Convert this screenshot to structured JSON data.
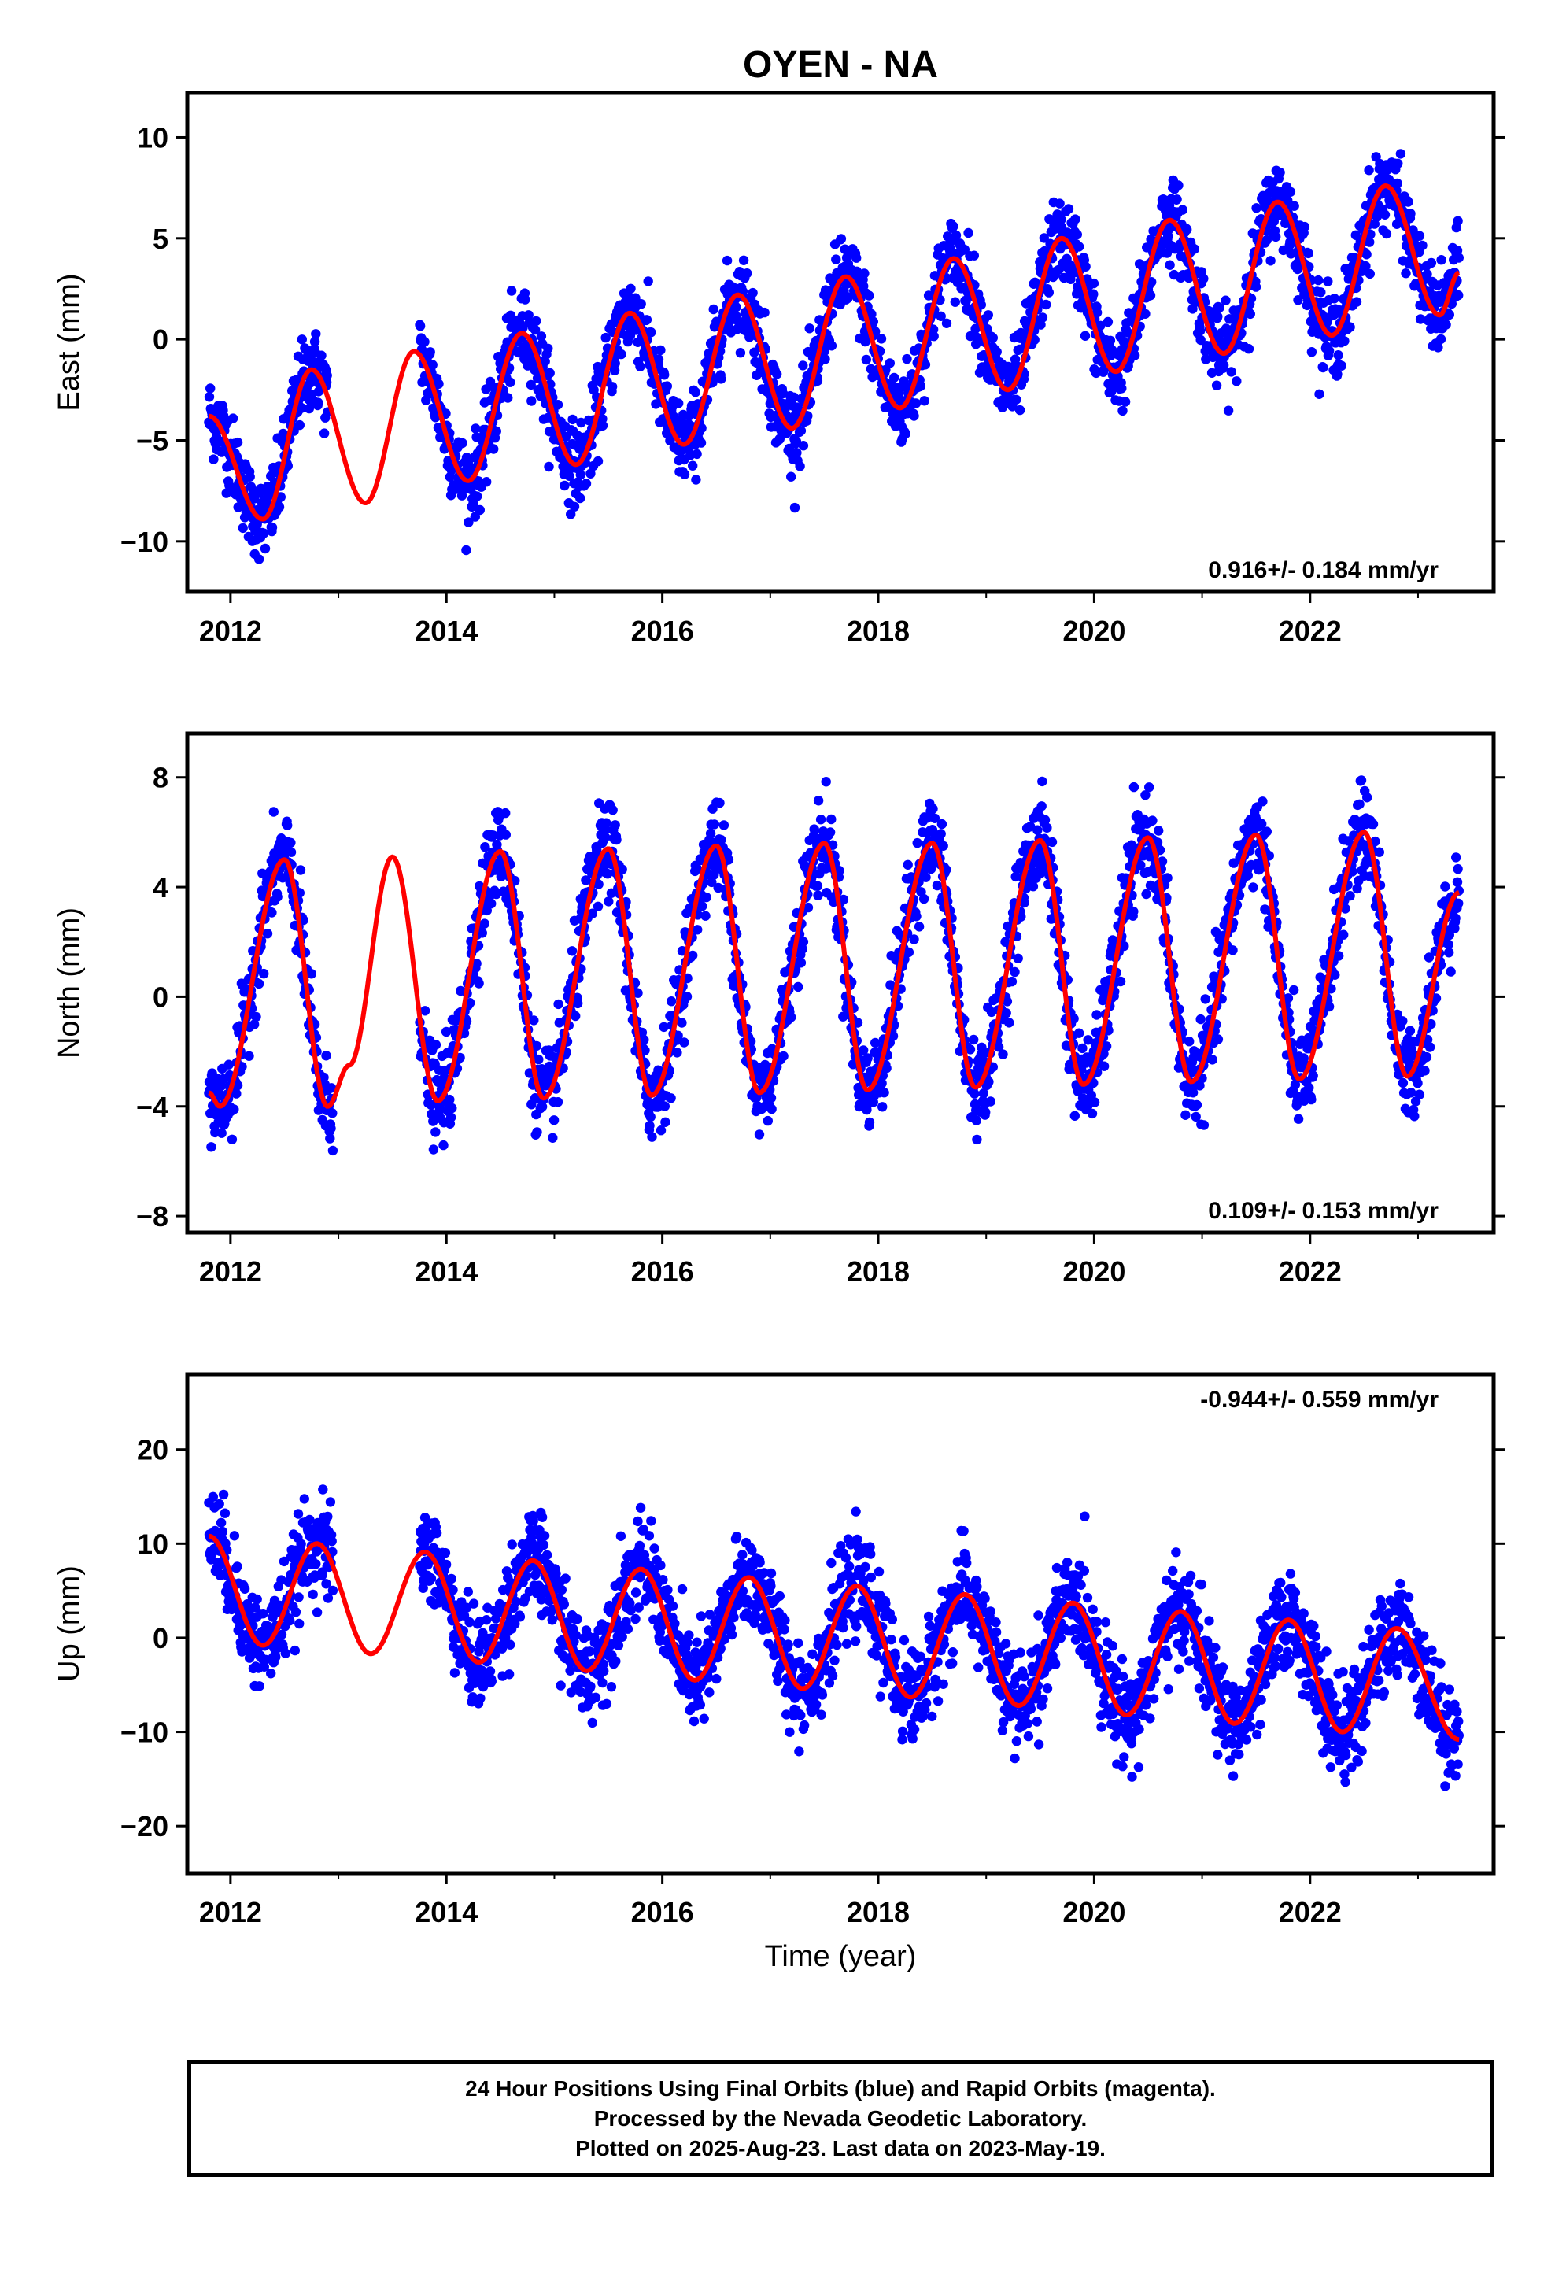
{
  "title": "OYEN - NA",
  "xlabel": "Time (year)",
  "footer": {
    "line1": "24 Hour Positions Using Final Orbits (blue) and Rapid Orbits (magenta).",
    "line2": "Processed by the Nevada Geodetic Laboratory.",
    "line3": "Plotted on 2025-Aug-23. Last data on 2023-May-19."
  },
  "colors": {
    "points": "#0000ff",
    "model": "#ff0000",
    "axis": "#000000"
  },
  "chart_data": [
    {
      "type": "scatter",
      "component": "east",
      "ylabel": "East (mm)",
      "xlim": [
        2011.6,
        2023.7
      ],
      "ylim": [
        -12.5,
        12.2
      ],
      "xticks": [
        2012,
        2014,
        2016,
        2018,
        2020,
        2022
      ],
      "yticks": [
        -10,
        -5,
        0,
        5,
        10
      ],
      "rate_label": "0.916+/- 0.184 mm/yr",
      "rate_position": "bottom-right",
      "data_start": 2011.8,
      "data_end": 2023.38,
      "data_gap": [
        2012.9,
        2013.75
      ],
      "model_x": [
        2011.8,
        2012.3,
        2012.75,
        2013.25,
        2013.7,
        2014.2,
        2014.7,
        2015.2,
        2015.7,
        2016.2,
        2016.7,
        2017.2,
        2017.7,
        2018.2,
        2018.7,
        2019.2,
        2019.7,
        2020.2,
        2020.7,
        2021.2,
        2021.7,
        2022.2,
        2022.7,
        2023.2,
        2023.38
      ],
      "model_y": [
        -3.8,
        -8.9,
        -1.5,
        -8.1,
        -0.6,
        -7.0,
        0.3,
        -6.2,
        1.3,
        -5.2,
        2.2,
        -4.4,
        3.1,
        -3.4,
        4.0,
        -2.5,
        5.0,
        -1.6,
        5.9,
        -0.7,
        6.8,
        0.2,
        7.6,
        1.2,
        3.3
      ],
      "scatter_sigma": 1.6
    },
    {
      "type": "scatter",
      "component": "north",
      "ylabel": "North (mm)",
      "xlim": [
        2011.6,
        2023.7
      ],
      "ylim": [
        -8.6,
        9.6
      ],
      "xticks": [
        2012,
        2014,
        2016,
        2018,
        2020,
        2022
      ],
      "yticks": [
        -8,
        -4,
        0,
        4,
        8
      ],
      "rate_label": "0.109+/- 0.153 mm/yr",
      "rate_position": "bottom-right",
      "data_start": 2011.8,
      "data_end": 2023.38,
      "data_gap": [
        2012.95,
        2013.75
      ],
      "model_x": [
        2011.8,
        2011.9,
        2012.5,
        2012.9,
        2013.1,
        2013.5,
        2013.92,
        2014.5,
        2014.9,
        2015.5,
        2015.9,
        2016.5,
        2016.9,
        2017.5,
        2017.9,
        2018.5,
        2018.9,
        2019.5,
        2019.9,
        2020.5,
        2020.9,
        2021.5,
        2021.9,
        2022.5,
        2022.9,
        2023.38
      ],
      "model_y": [
        -3.5,
        -4.0,
        5.0,
        -4.0,
        -2.5,
        5.1,
        -3.8,
        5.3,
        -3.7,
        5.4,
        -3.6,
        5.5,
        -3.5,
        5.6,
        -3.4,
        5.6,
        -3.3,
        5.7,
        -3.2,
        5.8,
        -3.1,
        5.9,
        -3.0,
        6.0,
        -2.9,
        3.8
      ],
      "scatter_sigma": 1.3
    },
    {
      "type": "scatter",
      "component": "up",
      "ylabel": "Up (mm)",
      "xlim": [
        2011.6,
        2023.7
      ],
      "ylim": [
        -25,
        28
      ],
      "xticks": [
        2012,
        2014,
        2016,
        2018,
        2020,
        2022
      ],
      "yticks": [
        -20,
        -10,
        0,
        10,
        20
      ],
      "rate_label": "-0.944+/- 0.559 mm/yr",
      "rate_position": "top-right",
      "data_start": 2011.8,
      "data_end": 2023.38,
      "data_gap": [
        2012.95,
        2013.75
      ],
      "model_x": [
        2011.8,
        2012.3,
        2012.8,
        2013.3,
        2013.8,
        2014.3,
        2014.8,
        2015.3,
        2015.8,
        2016.3,
        2016.8,
        2017.3,
        2017.8,
        2018.3,
        2018.8,
        2019.3,
        2019.8,
        2020.3,
        2020.8,
        2021.3,
        2021.8,
        2022.3,
        2022.8,
        2023.38
      ],
      "model_y": [
        10.8,
        -0.8,
        10.0,
        -1.7,
        9.1,
        -2.6,
        8.2,
        -3.5,
        7.3,
        -4.5,
        6.4,
        -5.4,
        5.5,
        -6.3,
        4.6,
        -7.2,
        3.7,
        -8.2,
        2.8,
        -9.1,
        1.9,
        -10.0,
        1.0,
        -10.8
      ],
      "scatter_sigma": 4.0
    }
  ]
}
